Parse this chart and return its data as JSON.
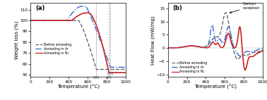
{
  "fig_width": 3.78,
  "fig_height": 1.42,
  "dpi": 100,
  "panel_a": {
    "label": "(a)",
    "xlabel": "Temperature (°C)",
    "ylabel": "Weight loss (%)",
    "xlim": [
      0,
      1000
    ],
    "ylim": [
      48,
      116
    ],
    "yticks": [
      50,
      60,
      70,
      80,
      90,
      100,
      110
    ],
    "xticks": [
      0,
      200,
      400,
      600,
      800,
      1000
    ],
    "vlines": [
      688,
      821,
      838
    ],
    "legend": [
      "Before annealing",
      "Annealing in Ar",
      "Annealing in N₂"
    ],
    "colors": [
      "#666666",
      "#3366cc",
      "#cc2222"
    ],
    "styles": [
      "--",
      "-.",
      "-"
    ],
    "linewidths": [
      1.0,
      1.0,
      1.2
    ]
  },
  "panel_b": {
    "label": "(b)",
    "xlabel": "Temperature (°C)",
    "ylabel": "Heat Flow (mW/mg)",
    "xlim": [
      0,
      1000
    ],
    "ylim": [
      -11,
      17
    ],
    "yticks": [
      -10,
      -5,
      0,
      5,
      10,
      15
    ],
    "xticks": [
      0,
      200,
      400,
      600,
      800,
      1000
    ],
    "annotation": "Carbon\noxidation",
    "legend": [
      "Before annealing",
      "Annealing in Ar",
      "Annealing in N₂"
    ],
    "colors": [
      "#666666",
      "#3366cc",
      "#cc2222"
    ],
    "styles": [
      "--",
      "-.",
      "-"
    ],
    "linewidths": [
      1.0,
      1.0,
      1.2
    ]
  }
}
